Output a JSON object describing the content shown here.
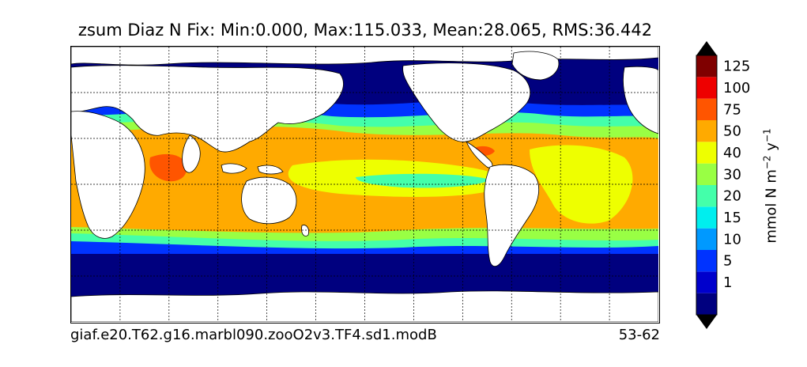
{
  "title": "zsum Diaz N Fix: Min:0.000, Max:115.033, Mean:28.065, RMS:36.442",
  "footer": {
    "case_name": "giaf.e20.T62.g16.marbl090.zooO2v3.TF4.sd1.modB",
    "years": "53-62"
  },
  "colorbar": {
    "units_main": "mmol N m",
    "units_sup1": "−2",
    "units_mid": " y",
    "units_sup2": "−1",
    "levels": [
      {
        "label": "",
        "color": "#00007f"
      },
      {
        "label": "1",
        "color": "#0000cc"
      },
      {
        "label": "5",
        "color": "#0033ff"
      },
      {
        "label": "10",
        "color": "#0099ff"
      },
      {
        "label": "15",
        "color": "#00eeee"
      },
      {
        "label": "20",
        "color": "#44ffaa"
      },
      {
        "label": "30",
        "color": "#99ff44"
      },
      {
        "label": "40",
        "color": "#eeff00"
      },
      {
        "label": "50",
        "color": "#ffaa00"
      },
      {
        "label": "75",
        "color": "#ff5500"
      },
      {
        "label": "100",
        "color": "#ee0000"
      },
      {
        "label": "125",
        "color": "#7f0000"
      }
    ]
  },
  "map": {
    "projection": "global lat-lon",
    "gridlines": true,
    "land_color": "#ffffff",
    "polar_color": "#00007f",
    "subtropical_color": "#ffaa00",
    "equatorial_color": "#eeff00",
    "transition_color": "#99ff44"
  }
}
